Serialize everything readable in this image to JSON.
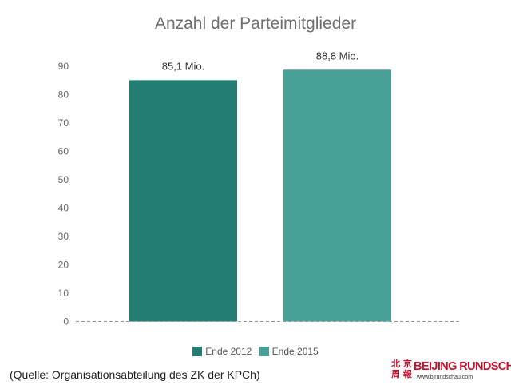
{
  "chart_data": {
    "type": "bar",
    "title": "Anzahl der Parteimitglieder",
    "categories": [
      "Ende 2012",
      "Ende 2015"
    ],
    "values": [
      85.1,
      88.8
    ],
    "data_labels": [
      "85,1 Mio.",
      "88,8 Mio."
    ],
    "colors": [
      "#237d73",
      "#48a197"
    ],
    "yticks": [
      "0",
      "10",
      "20",
      "30",
      "40",
      "50",
      "60",
      "70",
      "80",
      "90"
    ],
    "ylim": [
      0,
      90
    ],
    "grid": false,
    "legend": {
      "position": "bottom",
      "entries": [
        {
          "label": "Ende 2012",
          "color": "#237d73"
        },
        {
          "label": "Ende 2015",
          "color": "#48a197"
        }
      ]
    }
  },
  "source_note": "(Quelle: Organisationsabteilung des ZK der KPCh)",
  "brand": {
    "name": "BEIJING RUNDSCHAU",
    "url": "www.bjrundschau.com",
    "seal": "北京周報"
  }
}
